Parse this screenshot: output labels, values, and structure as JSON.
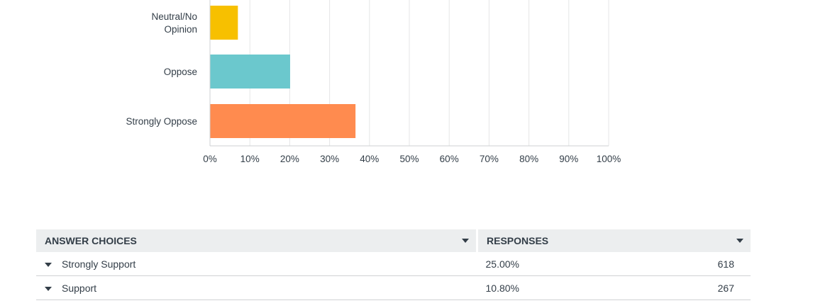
{
  "chart_data": {
    "type": "bar",
    "orientation": "horizontal",
    "categories": [
      "Neutral/No Opinion",
      "Oppose",
      "Strongly Oppose"
    ],
    "category_lines": [
      [
        "Neutral/No",
        "Opinion"
      ],
      [
        "Oppose"
      ],
      [
        "Strongly Oppose"
      ]
    ],
    "values": [
      7,
      20.1,
      36.5
    ],
    "colors": [
      "#f7c000",
      "#6bc8cd",
      "#ff8b4f"
    ],
    "xlim": [
      0,
      100
    ],
    "xticks": [
      "0%",
      "10%",
      "20%",
      "30%",
      "40%",
      "50%",
      "60%",
      "70%",
      "80%",
      "90%",
      "100%"
    ],
    "grid": true
  },
  "table": {
    "headers": {
      "choice": "ANSWER CHOICES",
      "responses": "RESPONSES"
    },
    "rows": [
      {
        "choice": "Strongly Support",
        "percent": "25.00%",
        "count": "618"
      },
      {
        "choice": "Support",
        "percent": "10.80%",
        "count": "267"
      }
    ]
  }
}
